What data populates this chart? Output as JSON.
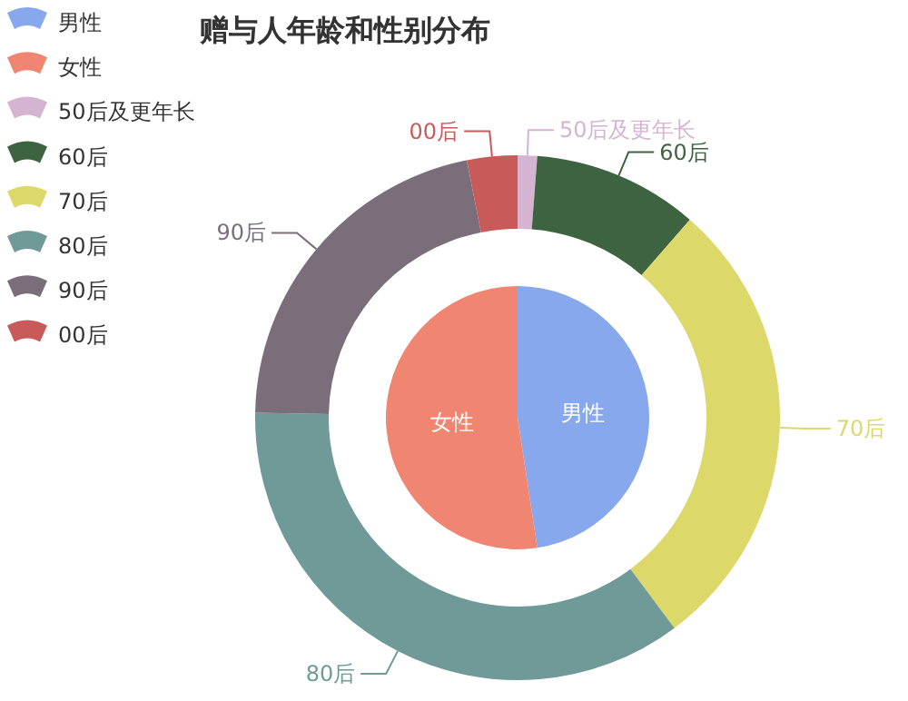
{
  "chart_data": [
    {
      "type": "pie",
      "title": "赠与人年龄和性别分布",
      "categories": [
        "男性",
        "女性"
      ],
      "values": [
        47.6,
        52.4
      ],
      "colors": [
        "#88a8ee",
        "#f08672"
      ],
      "legend": "top left"
    },
    {
      "type": "donut",
      "categories": [
        "50后及更年长",
        "60后",
        "70后",
        "80后",
        "90后",
        "00后"
      ],
      "values": [
        1.2,
        10.2,
        28.4,
        35.5,
        21.6,
        3.1
      ],
      "colors": [
        "#d4b4d0",
        "#3e6340",
        "#dcd86a",
        "#6f9a98",
        "#7a6e7a",
        "#c95a5a"
      ],
      "legend": "top left"
    }
  ]
}
